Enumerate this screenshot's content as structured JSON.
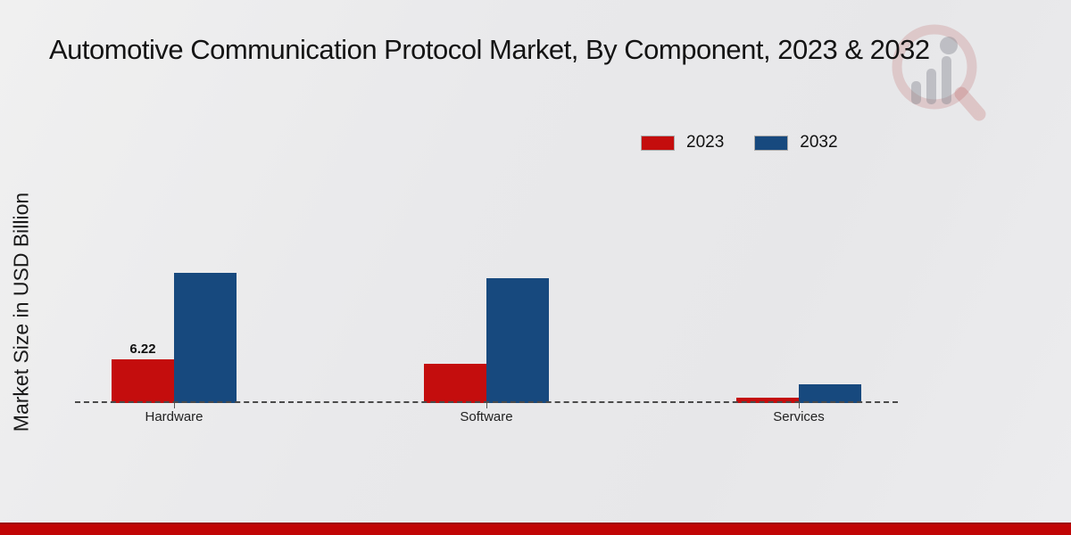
{
  "chart_data": {
    "type": "bar",
    "title": "Automotive Communication Protocol Market, By Component, 2023 & 2032",
    "ylabel": "Market Size in USD Billion",
    "xlabel": "",
    "categories": [
      "Hardware",
      "Software",
      "Services"
    ],
    "series": [
      {
        "name": "2023",
        "color": "#c40d0d",
        "values": [
          6.22,
          5.6,
          0.75
        ]
      },
      {
        "name": "2032",
        "color": "#17497e",
        "values": [
          18.5,
          17.8,
          2.7
        ]
      }
    ],
    "bar_labels": [
      [
        "6.22",
        null,
        null
      ],
      [
        null,
        null,
        null
      ]
    ],
    "ylim": [
      0,
      20
    ],
    "grid": false,
    "legend_position": "top-right",
    "baseline_style": "dashed"
  },
  "icons": {
    "watermark": "magnifier-bar-chart-logo"
  },
  "colors": {
    "series_2023": "#c40d0d",
    "series_2032": "#17497e",
    "footer_band": "#c10505",
    "background": "#e9e9ea",
    "text": "#1a1a1a"
  }
}
